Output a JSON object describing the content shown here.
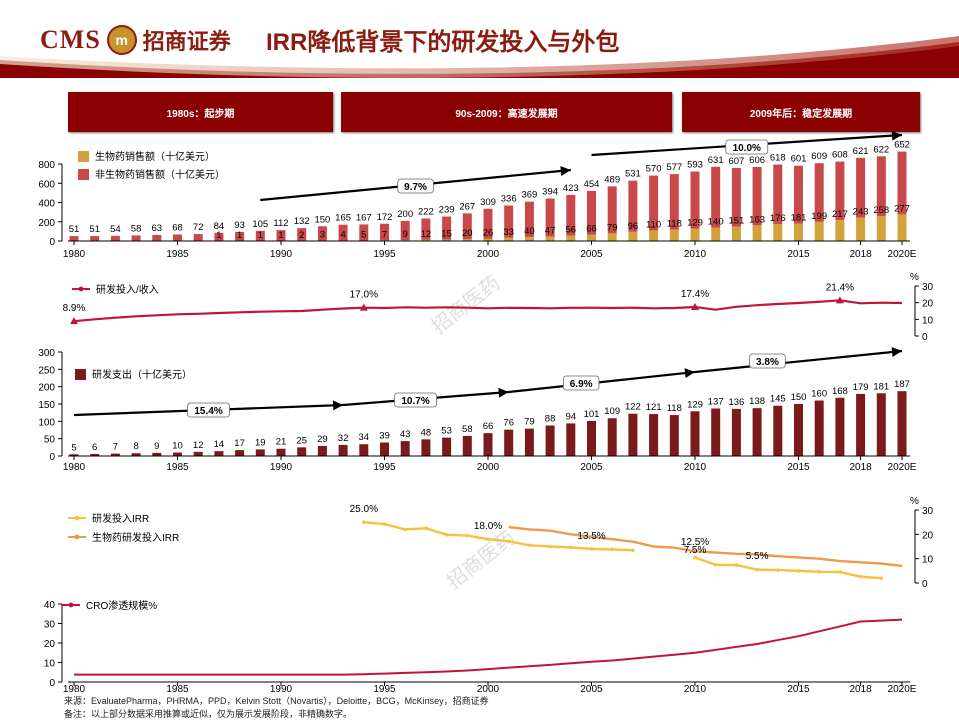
{
  "header": {
    "logo_text": "CMS",
    "logo_badge": "m",
    "logo_cn": "招商证券",
    "title": "IRR降低背景下的研发投入与外包",
    "colors": {
      "primary": "#8b0000",
      "gold": "#c8922d"
    }
  },
  "phases": [
    {
      "label": "1980s：起步期"
    },
    {
      "label": "90s-2009：高速发展期"
    },
    {
      "label": "2009年后：稳定发展期"
    }
  ],
  "watermark": "招商医药",
  "footer": {
    "source": "来源：EvaluatePharma，PHRMA，PPD，Kelvin Stott（Novartis），Deloitte，BCG，McKinsey，招商证券",
    "note": "备注：以上部分数据采用推算或近似，仅为展示发展阶段，非精确数字。"
  },
  "chart_data": [
    {
      "type": "bar",
      "x": [
        1980,
        1981,
        1982,
        1983,
        1984,
        1985,
        1986,
        1987,
        1988,
        1989,
        1990,
        1991,
        1992,
        1993,
        1994,
        1995,
        1996,
        1997,
        1998,
        1999,
        2000,
        2001,
        2002,
        2003,
        2004,
        2005,
        2006,
        2007,
        2008,
        2009,
        2010,
        2011,
        2012,
        2013,
        2014,
        2015,
        2016,
        2017,
        2018,
        2019,
        2020
      ],
      "x_ticks": [
        {
          "x": 1980,
          "label": "1980"
        },
        {
          "x": 1985,
          "label": "1985"
        },
        {
          "x": 1990,
          "label": "1990"
        },
        {
          "x": 1995,
          "label": "1995"
        },
        {
          "x": 2000,
          "label": "2000"
        },
        {
          "x": 2005,
          "label": "2005"
        },
        {
          "x": 2010,
          "label": "2010"
        },
        {
          "x": 2015,
          "label": "2015"
        },
        {
          "x": 2018,
          "label": "2018"
        },
        {
          "x": 2020,
          "label": "2020E"
        }
      ],
      "series": [
        {
          "name": "生物药销售额（十亿美元）",
          "color": "#d4a23c",
          "values": [
            0,
            0,
            0,
            0,
            0,
            0,
            0,
            1,
            1,
            1,
            1,
            2,
            3,
            4,
            5,
            7,
            9,
            12,
            15,
            20,
            26,
            33,
            40,
            47,
            56,
            66,
            79,
            96,
            110,
            118,
            129,
            140,
            151,
            163,
            176,
            181,
            199,
            217,
            243,
            258,
            277
          ]
        },
        {
          "name": "非生物药销售额（十亿美元）",
          "color": "#c9484a",
          "values": [
            51,
            51,
            54,
            58,
            63,
            68,
            72,
            84,
            93,
            105,
            112,
            132,
            150,
            165,
            167,
            172,
            200,
            222,
            239,
            267,
            309,
            336,
            369,
            394,
            423,
            454,
            489,
            531,
            570,
            577,
            593,
            631,
            607,
            606,
            618,
            601,
            609,
            608,
            621,
            622,
            652
          ]
        }
      ],
      "ylim": [
        0,
        800
      ],
      "yticks": [
        0,
        200,
        400,
        600,
        800
      ],
      "annotations": [
        {
          "label": "9.7%",
          "x": 1996.5,
          "y": 8.5
        },
        {
          "label": "10.0%",
          "x": 2012.5,
          "y": 13.5
        }
      ],
      "legend": "top-left"
    },
    {
      "type": "line",
      "title": "研发投入/收入",
      "x": [
        1980,
        1981,
        1982,
        1983,
        1984,
        1985,
        1986,
        1987,
        1988,
        1989,
        1990,
        1991,
        1992,
        1993,
        1994,
        1995,
        1996,
        1997,
        1998,
        1999,
        2000,
        2001,
        2002,
        2003,
        2004,
        2005,
        2006,
        2007,
        2008,
        2009,
        2010,
        2011,
        2012,
        2013,
        2014,
        2015,
        2016,
        2017,
        2018,
        2019,
        2020
      ],
      "values": [
        8.9,
        10.0,
        11.0,
        11.8,
        12.4,
        13.0,
        13.3,
        13.8,
        14.2,
        14.6,
        14.8,
        15.0,
        15.8,
        16.5,
        17.0,
        16.8,
        17.2,
        17.0,
        17.2,
        17.0,
        16.6,
        16.9,
        16.8,
        16.6,
        16.9,
        17.0,
        16.8,
        17.0,
        16.6,
        16.8,
        17.4,
        15.8,
        17.5,
        18.5,
        19.2,
        19.8,
        20.5,
        21.4,
        19.6,
        20.0,
        19.8
      ],
      "ylim": [
        0,
        30
      ],
      "yticks": [
        0,
        10,
        20,
        30
      ],
      "ylabel": "%",
      "labels": [
        {
          "x": 1980,
          "label": "8.9%"
        },
        {
          "x": 1994,
          "label": "17.0%"
        },
        {
          "x": 2010,
          "label": "17.4%"
        },
        {
          "x": 2017,
          "label": "21.4%"
        }
      ],
      "color": "#c0143c"
    },
    {
      "type": "bar",
      "x": [
        1980,
        1981,
        1982,
        1983,
        1984,
        1985,
        1986,
        1987,
        1988,
        1989,
        1990,
        1991,
        1992,
        1993,
        1994,
        1995,
        1996,
        1997,
        1998,
        1999,
        2000,
        2001,
        2002,
        2003,
        2004,
        2005,
        2006,
        2007,
        2008,
        2009,
        2010,
        2011,
        2012,
        2013,
        2014,
        2015,
        2016,
        2017,
        2018,
        2019,
        2020
      ],
      "series": [
        {
          "name": "研发支出（十亿美元）",
          "color": "#7a1a1a",
          "values": [
            5,
            6,
            7,
            8,
            9,
            10,
            12,
            14,
            17,
            19,
            21,
            25,
            29,
            32,
            34,
            39,
            43,
            48,
            53,
            58,
            66,
            76,
            79,
            88,
            94,
            101,
            109,
            122,
            121,
            118,
            129,
            137,
            136,
            138,
            145,
            150,
            160,
            168,
            179,
            181,
            187
          ]
        }
      ],
      "ylim": [
        0,
        300
      ],
      "yticks": [
        0,
        50,
        100,
        150,
        200,
        250,
        300
      ],
      "annotations": [
        {
          "label": "15.4%",
          "x": 1986.5,
          "y": 133
        },
        {
          "label": "10.7%",
          "x": 1996.5,
          "y": 162
        },
        {
          "label": "6.9%",
          "x": 2004.5,
          "y": 212
        },
        {
          "label": "3.8%",
          "x": 2013.5,
          "y": 272
        }
      ],
      "legend": "top-left"
    },
    {
      "type": "line",
      "series": [
        {
          "name": "研发投入IRR",
          "color": "#f5c242",
          "x": [
            1994,
            1995,
            1996,
            1997,
            1998,
            1999,
            2000,
            2001,
            2002,
            2003,
            2004,
            2005,
            2006,
            2007
          ],
          "values": [
            25.0,
            24.2,
            22.0,
            22.5,
            19.8,
            19.5,
            18.0,
            17.2,
            15.5,
            15.0,
            14.6,
            14.0,
            13.8,
            13.5
          ]
        },
        {
          "name": "研发投入IRR",
          "color": "#f5c242",
          "x": [
            2010,
            2011,
            2012,
            2013,
            2014,
            2015,
            2016,
            2017,
            2018,
            2019
          ],
          "values": [
            10.5,
            7.5,
            7.4,
            5.5,
            5.3,
            5.0,
            4.6,
            4.5,
            2.6,
            2.0
          ]
        },
        {
          "name": "生物药研发投入IRR",
          "color": "#ee9a4d",
          "x": [
            2001,
            2002,
            2003,
            2004,
            2005,
            2006,
            2007,
            2008,
            2009,
            2010,
            2011,
            2012,
            2013,
            2014,
            2015,
            2016,
            2017,
            2018,
            2019,
            2020
          ],
          "values": [
            23.0,
            22.0,
            21.5,
            20.0,
            19.0,
            18.0,
            17.0,
            15.0,
            14.5,
            13.0,
            12.5,
            12.0,
            11.8,
            11.0,
            10.5,
            10.0,
            9.0,
            8.5,
            8.0,
            7.0
          ]
        }
      ],
      "ylim": [
        0,
        30
      ],
      "yticks": [
        0,
        10,
        20,
        30
      ],
      "ylabel": "%",
      "labels": [
        {
          "x": 1994,
          "label": "25.0%"
        },
        {
          "x": 2000,
          "label": "18.0%"
        },
        {
          "x": 2005,
          "label": "13.5%"
        },
        {
          "x": 2010,
          "label": "12.5%"
        },
        {
          "x": 2010,
          "label": "7.5%"
        },
        {
          "x": 2013,
          "label": "5.5%"
        }
      ],
      "legend": "top-left"
    },
    {
      "type": "line",
      "series": [
        {
          "name": "CRO渗透规模%",
          "color": "#c0143c",
          "x": [
            1980,
            1981,
            1982,
            1983,
            1984,
            1985,
            1986,
            1987,
            1988,
            1989,
            1990,
            1991,
            1992,
            1993,
            1994,
            1995,
            1996,
            1997,
            1998,
            1999,
            2000,
            2001,
            2002,
            2003,
            2004,
            2005,
            2006,
            2007,
            2008,
            2009,
            2010,
            2011,
            2012,
            2013,
            2014,
            2015,
            2016,
            2017,
            2018,
            2019,
            2020
          ],
          "values": [
            3.8,
            3.8,
            3.8,
            3.8,
            3.8,
            3.8,
            3.8,
            3.8,
            3.8,
            3.8,
            3.8,
            3.8,
            3.8,
            3.8,
            4.0,
            4.3,
            4.7,
            5.0,
            5.4,
            5.9,
            6.6,
            7.4,
            8.1,
            8.8,
            9.6,
            10.4,
            11.0,
            12.0,
            13.0,
            14.0,
            15.0,
            16.5,
            18.0,
            19.5,
            21.5,
            23.5,
            26.0,
            28.5,
            31.0,
            31.5,
            32.0
          ]
        }
      ],
      "x_ticks": [
        {
          "x": 1980,
          "label": "1980"
        },
        {
          "x": 1985,
          "label": "1985"
        },
        {
          "x": 1990,
          "label": "1990"
        },
        {
          "x": 1995,
          "label": "1995"
        },
        {
          "x": 2000,
          "label": "2000"
        },
        {
          "x": 2005,
          "label": "2005"
        },
        {
          "x": 2010,
          "label": "2010"
        },
        {
          "x": 2015,
          "label": "2015"
        },
        {
          "x": 2018,
          "label": "2018"
        },
        {
          "x": 2020,
          "label": "2020E"
        }
      ],
      "ylim": [
        0,
        40
      ],
      "yticks": [
        0,
        10,
        20,
        30,
        40
      ],
      "legend": "top-left"
    }
  ]
}
